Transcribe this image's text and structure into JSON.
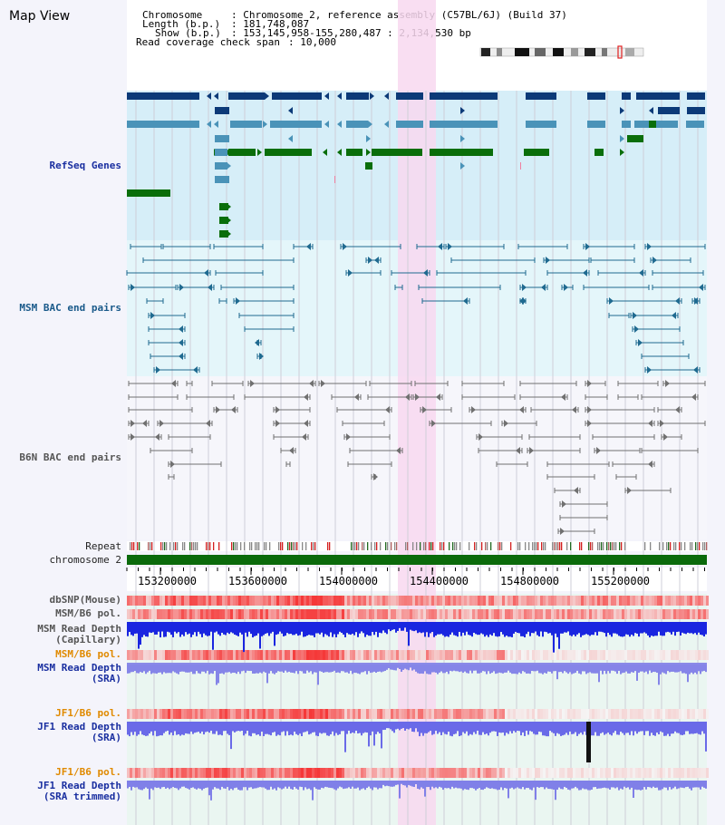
{
  "title": "Map View",
  "info": {
    "chromosome_key": "Chromosome",
    "chromosome_val": ": Chromosome 2, reference assembly (C57BL/6J) (Build 37)",
    "length_key": "Length (b.p.)",
    "length_val": ": 181,748,087",
    "show_key": "Show (b.p.)",
    "show_val": ": 153,145,958-155,280,487 : 2,134,530 bp",
    "span_key": "Read coverage check span",
    "span_val": ": 10,000"
  },
  "tracks": {
    "refseq": "RefSeq Genes",
    "msm_bac": "MSM BAC end pairs",
    "b6n_bac": "B6N BAC end pairs",
    "repeat": "Repeat",
    "chromosome": "chromosome 2",
    "dbsnp": "dbSNP(Mouse)",
    "msm_b6_pol_1": "MSM/B6 pol.",
    "msm_depth_cap_1": "MSM Read Depth",
    "msm_depth_cap_2": "(Capillary)",
    "msm_b6_pol_2": "MSM/B6 pol.",
    "msm_depth_sra_1": "MSM Read Depth",
    "msm_depth_sra_2": "(SRA)",
    "jf1_b6_pol_1": "JF1/B6 pol.",
    "jf1_depth_sra_1": "JF1 Read Depth",
    "jf1_depth_sra_2": "(SRA)",
    "jf1_b6_pol_2": "JF1/B6 pol.",
    "jf1_depth_trim_1": "JF1 Read Depth",
    "jf1_depth_trim_2": "(SRA trimmed)"
  },
  "axis": {
    "ticks": [
      "153200000",
      "153600000",
      "154000000",
      "154400000",
      "154800000",
      "155200000"
    ]
  },
  "colors": {
    "refseq_dark": "#0c3a78",
    "refseq_light": "#4a93b8",
    "refseq_green": "#0a6e0a",
    "msm_bac": "#1f6a90",
    "b6n_bac": "#707070",
    "chromosome": "#0b6a0b",
    "highlight": "#f8d8f0"
  }
}
